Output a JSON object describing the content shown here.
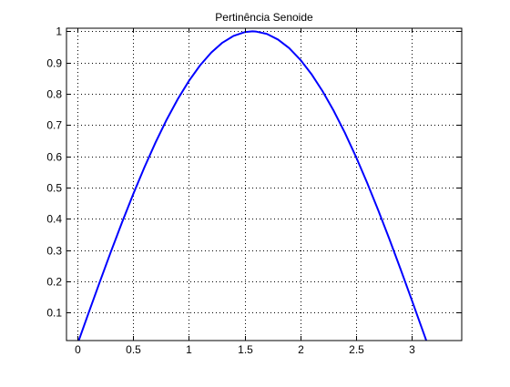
{
  "chart_data": {
    "type": "line",
    "title": "Pertinência Senoide",
    "xlabel": "",
    "ylabel": "",
    "xlim": [
      -0.1,
      3.45
    ],
    "ylim": [
      0.01,
      1.01
    ],
    "grid": true,
    "x_ticks": [
      0,
      0.5,
      1,
      1.5,
      2,
      2.5,
      3
    ],
    "x_tick_labels": [
      "0",
      "0.5",
      "1",
      "1.5",
      "2",
      "2.5",
      "3"
    ],
    "y_ticks": [
      0.1,
      0.2,
      0.3,
      0.4,
      0.5,
      0.6,
      0.7,
      0.8,
      0.9,
      1
    ],
    "y_tick_labels": [
      "0.1",
      "0.2",
      "0.3",
      "0.4",
      "0.5",
      "0.6",
      "0.7",
      "0.8",
      "0.9",
      "1"
    ],
    "series": [
      {
        "color": "#0000ff",
        "x": [
          0,
          0.1,
          0.2,
          0.3,
          0.4,
          0.5,
          0.6,
          0.7,
          0.8,
          0.9,
          1.0,
          1.1,
          1.2,
          1.3,
          1.4,
          1.5,
          1.5708,
          1.6,
          1.7,
          1.8,
          1.9,
          2.0,
          2.1,
          2.2,
          2.3,
          2.4,
          2.5,
          2.6,
          2.7,
          2.8,
          2.9,
          3.0,
          3.1,
          3.1416
        ],
        "y": [
          0,
          0.0998,
          0.1987,
          0.2955,
          0.3894,
          0.4794,
          0.5646,
          0.6442,
          0.7174,
          0.7833,
          0.8415,
          0.8912,
          0.932,
          0.9636,
          0.9854,
          0.9975,
          1.0,
          0.9996,
          0.9917,
          0.9738,
          0.9463,
          0.9093,
          0.8632,
          0.8085,
          0.7457,
          0.6755,
          0.5985,
          0.5155,
          0.4274,
          0.335,
          0.2392,
          0.1411,
          0.0416,
          0
        ]
      }
    ]
  }
}
